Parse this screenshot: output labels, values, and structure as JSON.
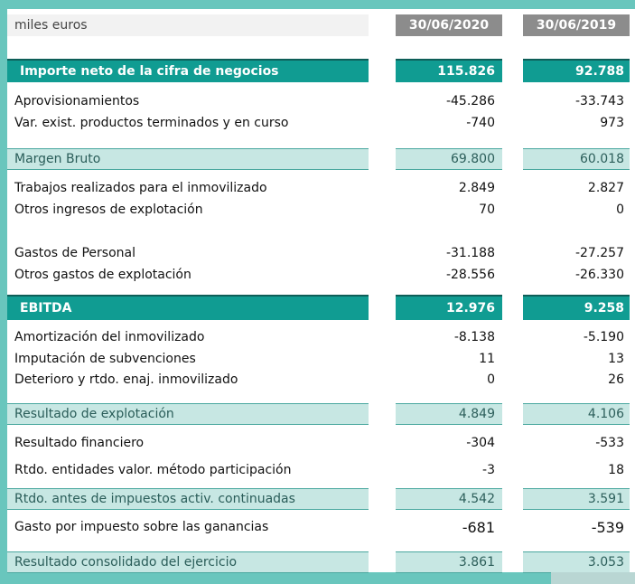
{
  "header": {
    "unit": "miles euros",
    "col1": "30/06/2020",
    "col2": "30/06/2019"
  },
  "rows": [
    {
      "label": "Importe neto de la cifra de negocios",
      "v2020": "115.826",
      "v2019": "92.788"
    },
    {
      "label": "Aprovisionamientos",
      "v2020": "-45.286",
      "v2019": "-33.743"
    },
    {
      "label": "Var. exist. productos terminados y en curso",
      "v2020": "-740",
      "v2019": "973"
    },
    {
      "label": "Margen Bruto",
      "v2020": "69.800",
      "v2019": "60.018"
    },
    {
      "label": "Trabajos realizados para el inmovilizado",
      "v2020": "2.849",
      "v2019": "2.827"
    },
    {
      "label": "Otros ingresos de explotación",
      "v2020": "70",
      "v2019": "0"
    },
    {
      "label": "Gastos de Personal",
      "v2020": "-31.188",
      "v2019": "-27.257"
    },
    {
      "label": "Otros gastos de explotación",
      "v2020": "-28.556",
      "v2019": "-26.330"
    },
    {
      "label": "EBITDA",
      "v2020": "12.976",
      "v2019": "9.258"
    },
    {
      "label": "Amortización del inmovilizado",
      "v2020": "-8.138",
      "v2019": "-5.190"
    },
    {
      "label": "Imputación de subvenciones",
      "v2020": "11",
      "v2019": "13"
    },
    {
      "label": "Deterioro y rtdo. enaj. inmovilizado",
      "v2020": "0",
      "v2019": "26"
    },
    {
      "label": "Resultado de explotación",
      "v2020": "4.849",
      "v2019": "4.106"
    },
    {
      "label": "Resultado financiero",
      "v2020": "-304",
      "v2019": "-533"
    },
    {
      "label": "Rtdo. entidades valor. método  participación",
      "v2020": "-3",
      "v2019": "18"
    },
    {
      "label": "Rtdo. antes de impuestos activ. continuadas",
      "v2020": "4.542",
      "v2019": "3.591"
    },
    {
      "label": "Gasto por impuesto sobre las ganancias",
      "v2020": "-681",
      "v2019": "-539"
    },
    {
      "label": "Resultado consolidado del ejercicio",
      "v2020": "3.861",
      "v2019": "3.053"
    }
  ],
  "colors": {
    "background": "#69c6bd",
    "main_row": "#109c92",
    "subtotal_row": "#c7e7e3",
    "header_cell": "#8c8c8c"
  }
}
